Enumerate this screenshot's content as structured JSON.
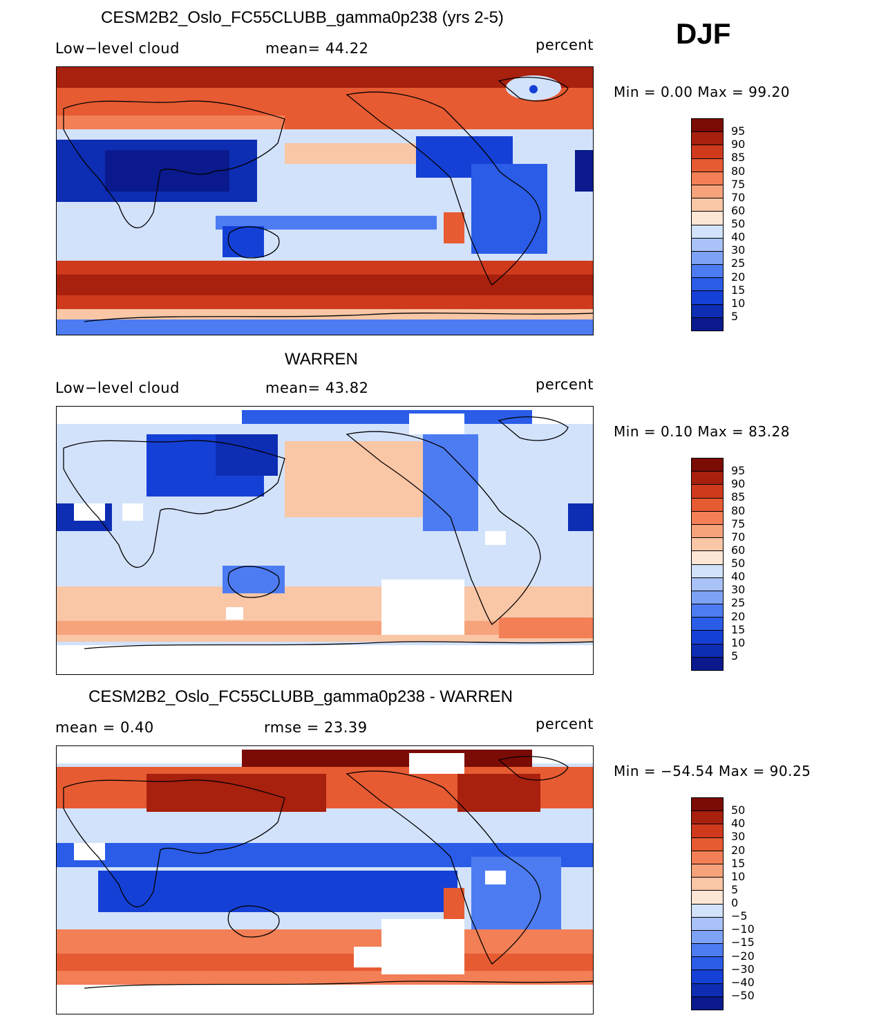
{
  "season": "DJF",
  "unit": "percent",
  "panels": [
    {
      "title": "CESM2B2_Oslo_FC55CLUBB_gamma0p238 (yrs 2-5)",
      "left_label": "Low−level cloud",
      "stat1": "mean=   44.22",
      "unit": "percent",
      "minmax": "Min =    0.00  Max =   99.20",
      "field_mean": 44.22,
      "field_min": 0.0,
      "field_max": 99.2,
      "colorbar": {
        "labels": [
          "5",
          "10",
          "15",
          "20",
          "25",
          "30",
          "40",
          "50",
          "60",
          "70",
          "75",
          "80",
          "85",
          "90",
          "95"
        ],
        "colors": [
          "#0a1a8c",
          "#0d2db3",
          "#1540d6",
          "#2a5ce8",
          "#4d7cf2",
          "#7ea2f6",
          "#a9c2f8",
          "#d2e2fb",
          "#fde6d5",
          "#f9c6a6",
          "#f6a27a",
          "#f27f55",
          "#e75b32",
          "#cf3a1d",
          "#a8200e",
          "#7a0b05"
        ]
      }
    },
    {
      "title": "WARREN",
      "left_label": "Low−level cloud",
      "stat1": "mean=   43.82",
      "unit": "percent",
      "minmax": "Min =    0.10  Max =   83.28",
      "field_mean": 43.82,
      "field_min": 0.1,
      "field_max": 83.28,
      "colorbar": {
        "labels": [
          "5",
          "10",
          "15",
          "20",
          "25",
          "30",
          "40",
          "50",
          "60",
          "70",
          "75",
          "80",
          "85",
          "90",
          "95"
        ],
        "colors": [
          "#0a1a8c",
          "#0d2db3",
          "#1540d6",
          "#2a5ce8",
          "#4d7cf2",
          "#7ea2f6",
          "#a9c2f8",
          "#d2e2fb",
          "#fde6d5",
          "#f9c6a6",
          "#f6a27a",
          "#f27f55",
          "#e75b32",
          "#cf3a1d",
          "#a8200e",
          "#7a0b05"
        ]
      }
    },
    {
      "title": "CESM2B2_Oslo_FC55CLUBB_gamma0p238 - WARREN",
      "left_label": "mean =    0.40",
      "stat1": "rmse =   23.39",
      "unit": "percent",
      "minmax": "Min = −54.54  Max =   90.25",
      "field_mean": 0.4,
      "field_rmse": 23.39,
      "field_min": -54.54,
      "field_max": 90.25,
      "colorbar": {
        "labels": [
          "−50",
          "−40",
          "−30",
          "−20",
          "−15",
          "−10",
          "−5",
          "0",
          "5",
          "10",
          "15",
          "20",
          "30",
          "40",
          "50"
        ],
        "colors": [
          "#0a1a8c",
          "#0d2db3",
          "#1540d6",
          "#2a5ce8",
          "#4d7cf2",
          "#7ea2f6",
          "#a9c2f8",
          "#d2e2fb",
          "#fde6d5",
          "#f9c6a6",
          "#f6a27a",
          "#f27f55",
          "#e75b32",
          "#cf3a1d",
          "#a8200e",
          "#7a0b05"
        ]
      }
    }
  ]
}
